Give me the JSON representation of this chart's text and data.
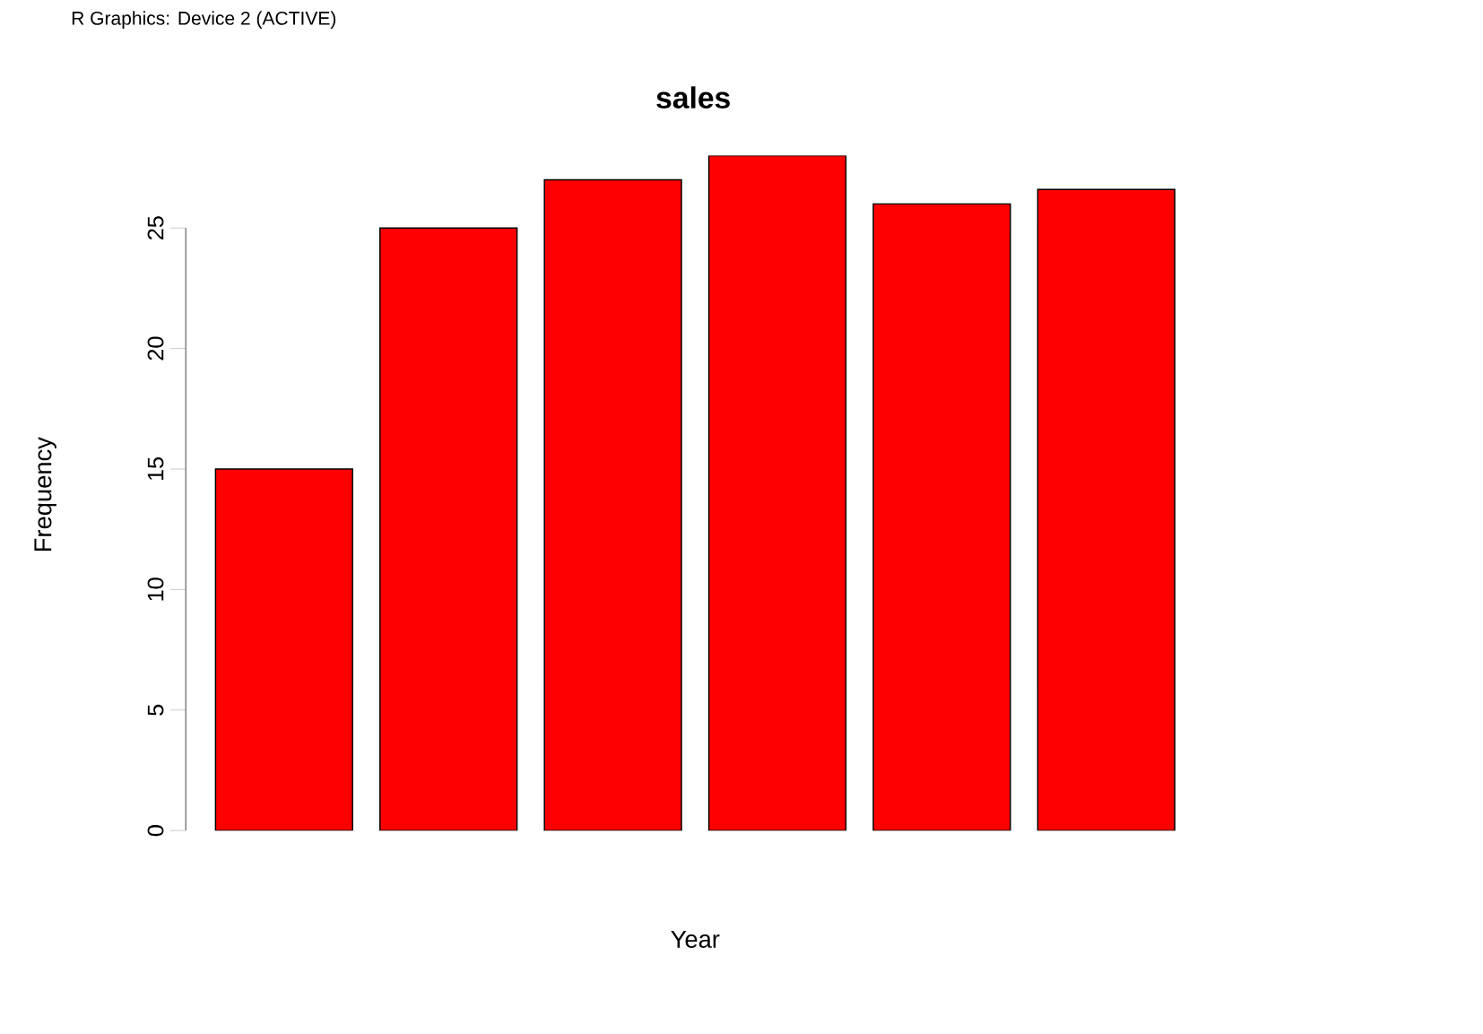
{
  "chart_data": {
    "type": "bar",
    "title": "sales",
    "xlabel": "Year",
    "ylabel": "Frequency",
    "categories": [
      null,
      null,
      null,
      null,
      null,
      null
    ],
    "values": [
      15,
      25,
      27,
      28,
      26,
      26.6
    ],
    "color": "#ff0000",
    "ylim": [
      0,
      28
    ],
    "yticks": [
      0,
      5,
      10,
      15,
      20,
      25
    ],
    "annotations": [
      "R Graphics: Device 2 (ACTIVE)"
    ]
  }
}
